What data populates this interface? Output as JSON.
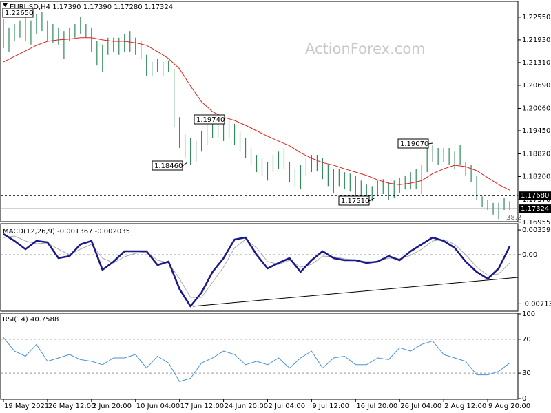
{
  "chart_data": [
    {
      "type": "bar_range",
      "title": "EURUSD,H4  1.17390 1.17390 1.17280 1.17324",
      "watermark": "ActionForex.com",
      "color": "#2e8b57",
      "xlim": [
        -0.5,
        93.5
      ],
      "xticks": [
        {
          "value": 0,
          "label": "19 May 2021"
        },
        {
          "value": 8,
          "label": "26 May 12:00"
        },
        {
          "value": 16,
          "label": "2 Jun 20:00"
        },
        {
          "value": 24,
          "label": "10 Jun 04:00"
        },
        {
          "value": 32,
          "label": "17 Jun 12:00"
        },
        {
          "value": 40,
          "label": "24 Jun 20:00"
        },
        {
          "value": 48,
          "label": "2 Jul 04:00"
        },
        {
          "value": 56,
          "label": "9 Jul 12:00"
        },
        {
          "value": 64,
          "label": "16 Jul 20:00"
        },
        {
          "value": 72,
          "label": "26 Jul 04:00"
        },
        {
          "value": 80,
          "label": "2 Aug 12:00"
        },
        {
          "value": 88,
          "label": "9 Aug 20:00"
        }
      ],
      "ylim": [
        1.1697,
        1.2298
      ],
      "yticks": [
        {
          "value": 1.2255,
          "label": "1.22550"
        },
        {
          "value": 1.2193,
          "label": "1.21930"
        },
        {
          "value": 1.2131,
          "label": "1.21310"
        },
        {
          "value": 1.2069,
          "label": "1.20690"
        },
        {
          "value": 1.2006,
          "label": "1.20060"
        },
        {
          "value": 1.1945,
          "label": "1.19450"
        },
        {
          "value": 1.1882,
          "label": "1.18820"
        },
        {
          "value": 1.182,
          "label": "1.18200"
        },
        {
          "value": 1.1757,
          "label": "1.17570"
        },
        {
          "value": 1.16955,
          "label": "1.16955"
        }
      ],
      "high": [
        1.2249,
        1.2227,
        1.2236,
        1.2246,
        1.2255,
        1.2246,
        1.2264,
        1.2268,
        1.2246,
        1.2236,
        1.2227,
        1.2217,
        1.2227,
        1.2236,
        1.2255,
        1.2236,
        1.2227,
        1.2189,
        1.218,
        1.2199,
        1.2199,
        1.2199,
        1.2208,
        1.2217,
        1.2199,
        1.2189,
        1.2152,
        1.2133,
        1.2142,
        1.2133,
        1.2137,
        1.2114,
        1.1982,
        1.1935,
        1.1926,
        1.1917,
        1.1945,
        1.1964,
        1.1982,
        1.1973,
        1.1967,
        1.1973,
        1.1964,
        1.1945,
        1.1926,
        1.1898,
        1.1879,
        1.187,
        1.186,
        1.1879,
        1.1888,
        1.1898,
        1.186,
        1.1841,
        1.1851,
        1.187,
        1.1879,
        1.1879,
        1.187,
        1.1851,
        1.1841,
        1.1841,
        1.1832,
        1.1828,
        1.1823,
        1.1809,
        1.1798,
        1.1794,
        1.1809,
        1.1813,
        1.1804,
        1.1809,
        1.1817,
        1.1823,
        1.1832,
        1.1841,
        1.1851,
        1.1898,
        1.1907,
        1.1898,
        1.1898,
        1.1898,
        1.1888,
        1.1907,
        1.186,
        1.1851,
        1.1823,
        1.1766,
        1.1757,
        1.1748,
        1.1748,
        1.1761,
        1.1753
      ],
      "low": [
        1.217,
        1.2161,
        1.2189,
        1.2199,
        1.2189,
        1.218,
        1.2208,
        1.2217,
        1.2189,
        1.2185,
        1.218,
        1.2142,
        1.2189,
        1.2199,
        1.2208,
        1.2199,
        1.2161,
        1.2123,
        1.2105,
        1.2152,
        1.2161,
        1.2152,
        1.2161,
        1.2161,
        1.2152,
        1.2142,
        1.2095,
        1.2095,
        1.2105,
        1.2095,
        1.2105,
        1.1954,
        1.1898,
        1.187,
        1.1851,
        1.186,
        1.1888,
        1.1907,
        1.1926,
        1.1926,
        1.1917,
        1.1926,
        1.1907,
        1.1888,
        1.187,
        1.1851,
        1.1832,
        1.1823,
        1.1809,
        1.1832,
        1.1841,
        1.1841,
        1.1804,
        1.1794,
        1.1785,
        1.1823,
        1.1832,
        1.1836,
        1.1813,
        1.1794,
        1.1776,
        1.1794,
        1.1785,
        1.1779,
        1.1766,
        1.1761,
        1.1753,
        1.1753,
        1.1766,
        1.1772,
        1.1757,
        1.1761,
        1.1776,
        1.1785,
        1.1785,
        1.1785,
        1.1772,
        1.1832,
        1.186,
        1.1851,
        1.186,
        1.1851,
        1.1841,
        1.1851,
        1.1823,
        1.1804,
        1.1757,
        1.1738,
        1.1729,
        1.1716,
        1.1704,
        1.1729,
        1.1729
      ],
      "ma": {
        "color": "#e02020",
        "x": [
          0,
          2,
          4,
          6,
          8,
          10,
          12,
          14,
          16,
          18,
          20,
          22,
          24,
          26,
          28,
          30,
          32,
          34,
          36,
          38,
          40,
          42,
          44,
          46,
          48,
          50,
          52,
          54,
          56,
          58,
          60,
          62,
          64,
          66,
          68,
          70,
          72,
          74,
          76,
          78,
          80,
          82,
          84,
          86,
          88,
          90,
          92
        ],
        "values": [
          1.2133,
          1.2148,
          1.2163,
          1.2178,
          1.2189,
          1.2193,
          1.2195,
          1.2199,
          1.2199,
          1.2193,
          1.2189,
          1.2189,
          1.2185,
          1.2178,
          1.2161,
          1.2142,
          1.2114,
          1.2067,
          1.2024,
          1.1997,
          1.1982,
          1.1973,
          1.196,
          1.1945,
          1.193,
          1.1917,
          1.1904,
          1.1885,
          1.187,
          1.1858,
          1.1851,
          1.1841,
          1.1832,
          1.1823,
          1.1811,
          1.1802,
          1.1798,
          1.1802,
          1.1809,
          1.1828,
          1.1841,
          1.1851,
          1.1847,
          1.1836,
          1.1817,
          1.1798,
          1.1783
        ]
      },
      "levels": [
        {
          "value": 1.1768,
          "label": "1.17680",
          "style": "dashed"
        },
        {
          "value": 1.17324,
          "label": "1.17324",
          "style": "solid"
        }
      ],
      "annotations": [
        "1.22650",
        "1.18460",
        "1.19740",
        "1.17510",
        "1.19070"
      ],
      "fib_label": "38.2"
    },
    {
      "type": "line",
      "title": "MACD(12,26,9) -0.001367 -0.002035",
      "ylim": [
        -0.0082,
        0.0045
      ],
      "yticks": [
        0.003591,
        {
          "value": 0,
          "label": "0.00"
        },
        -0.007137
      ],
      "dashed_ticks": [
        1
      ],
      "x": [
        0,
        2,
        4,
        6,
        8,
        10,
        12,
        14,
        16,
        18,
        20,
        22,
        24,
        26,
        28,
        30,
        32,
        34,
        36,
        38,
        40,
        42,
        44,
        46,
        48,
        50,
        52,
        54,
        56,
        58,
        60,
        62,
        64,
        66,
        68,
        70,
        72,
        74,
        76,
        78,
        80,
        82,
        84,
        86,
        88,
        90,
        92
      ],
      "series": [
        {
          "color": "#1a1a8a",
          "width": 2.6,
          "values": [
            0.003,
            0.002,
            0.0008,
            0.002,
            0.0018,
            -0.0005,
            -0.0002,
            0.0015,
            0.002,
            -0.0022,
            -0.001,
            0.0005,
            0.0005,
            0.0005,
            -0.0015,
            -0.001,
            -0.005,
            -0.0075,
            -0.0055,
            -0.0025,
            -0.0005,
            0.0022,
            0.0025,
            0,
            -0.002,
            -0.0012,
            -0.0005,
            -0.0025,
            -0.0008,
            0.0005,
            -0.0005,
            -0.0008,
            -0.0008,
            -0.0012,
            -0.001,
            -0.0002,
            -0.0008,
            0.0005,
            0.0015,
            0.0025,
            0.002,
            0.001,
            -0.001,
            -0.0025,
            -0.0035,
            -0.002,
            0.0012
          ]
        },
        {
          "color": "#a8a8a8",
          "width": 1,
          "values": [
            0.0025,
            0.0027,
            0.002,
            0.0016,
            0.0017,
            0.0008,
            0,
            0.0008,
            0.0015,
            -0.0005,
            -0.0012,
            -0.0003,
            0.0002,
            0.0004,
            -0.0008,
            -0.0012,
            -0.0035,
            -0.0062,
            -0.0062,
            -0.004,
            -0.0018,
            0.001,
            0.0022,
            0.001,
            -0.001,
            -0.0014,
            -0.0008,
            -0.0018,
            -0.0014,
            -0.0002,
            -0.0003,
            -0.0006,
            -0.0008,
            -0.001,
            -0.001,
            -0.0005,
            -0.0006,
            -0.0001,
            0.0008,
            0.002,
            0.0022,
            0.0015,
            0,
            -0.0018,
            -0.003,
            -0.0028,
            -0.0012
          ]
        }
      ]
    },
    {
      "type": "line",
      "title": "RSI(14) 40.7588",
      "ylim": [
        0,
        100
      ],
      "yticks": [
        100,
        70,
        30,
        0
      ],
      "dashed_ticks": [
        1,
        2
      ],
      "x": [
        0,
        2,
        4,
        6,
        8,
        10,
        12,
        14,
        16,
        18,
        20,
        22,
        24,
        26,
        28,
        30,
        32,
        34,
        36,
        38,
        40,
        42,
        44,
        46,
        48,
        50,
        52,
        54,
        56,
        58,
        60,
        62,
        64,
        66,
        68,
        70,
        72,
        74,
        76,
        78,
        80,
        82,
        84,
        86,
        88,
        90,
        92
      ],
      "series": [
        {
          "color": "#4a90d9",
          "width": 1,
          "values": [
            72,
            56,
            50,
            64,
            44,
            48,
            52,
            46,
            44,
            40,
            48,
            48,
            52,
            36,
            50,
            42,
            20,
            24,
            42,
            48,
            56,
            52,
            40,
            44,
            40,
            48,
            36,
            48,
            56,
            36,
            48,
            50,
            40,
            40,
            48,
            46,
            60,
            56,
            64,
            68,
            52,
            48,
            44,
            28,
            28,
            32,
            42
          ]
        }
      ]
    }
  ]
}
